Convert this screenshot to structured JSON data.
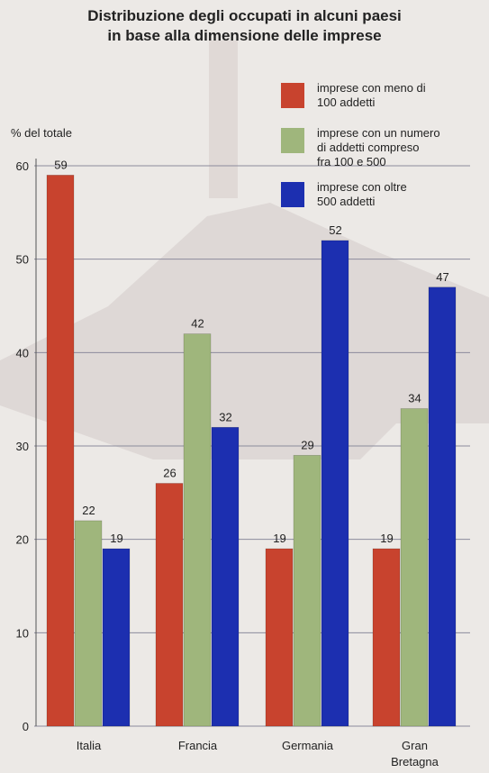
{
  "title_lines": [
    "Distribuzione degli occupati in alcuni paesi",
    "in base alla dimensione delle imprese"
  ],
  "ylabel": "% del totale",
  "legend": [
    {
      "lines": [
        "imprese con meno di",
        "100 addetti"
      ],
      "color": "#c8432e"
    },
    {
      "lines": [
        "imprese con un numero",
        "di addetti compreso",
        "fra 100 e 500"
      ],
      "color": "#9fb67c"
    },
    {
      "lines": [
        "imprese con oltre",
        "500 addetti"
      ],
      "color": "#1c2fb0"
    }
  ],
  "chart_data": {
    "type": "bar",
    "title": "Distribuzione degli occupati in alcuni paesi in base alla dimensione delle imprese",
    "ylabel": "% del totale",
    "xlabel": "",
    "ylim": [
      0,
      60
    ],
    "yticks": [
      0,
      10,
      20,
      30,
      40,
      50,
      60
    ],
    "grid": true,
    "legend_position": "top-right",
    "categories": [
      [
        "Italia"
      ],
      [
        "Francia"
      ],
      [
        "Germania"
      ],
      [
        "Gran",
        "Bretagna"
      ]
    ],
    "series": [
      {
        "name": "imprese con meno di 100 addetti",
        "color": "#c8432e",
        "values": [
          59,
          26,
          19,
          19
        ],
        "labels": [
          "59",
          "26",
          "19",
          "19"
        ]
      },
      {
        "name": "imprese con un numero di addetti compreso fra 100 e 500",
        "color": "#9fb67c",
        "values": [
          22,
          42,
          29,
          34
        ],
        "labels": [
          "22",
          "42",
          "29",
          "34"
        ]
      },
      {
        "name": "imprese con oltre 500 addetti",
        "color": "#1c2fb0",
        "values": [
          19,
          32,
          52,
          47
        ],
        "labels": [
          "19",
          "32",
          "52",
          "47"
        ]
      }
    ]
  }
}
